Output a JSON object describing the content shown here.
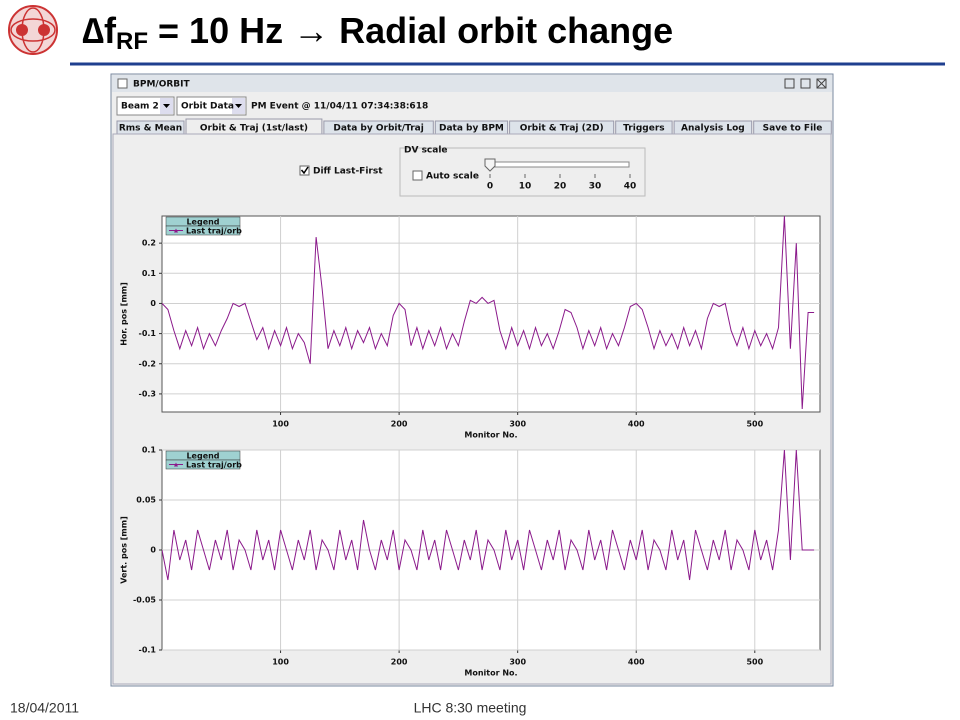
{
  "slide": {
    "title_parts": [
      "∆f",
      "RF",
      " = 10 Hz ",
      "→",
      " Radial orbit change"
    ],
    "footer_date": "18/04/2011",
    "footer_center": "LHC 8:30 meeting"
  },
  "window": {
    "title": "BPM/ORBIT",
    "beam_combo": "Beam 2",
    "data_combo": "Orbit Data",
    "event": "PM Event @ 11/04/11 07:34:38:618",
    "tabs": [
      "Rms & Mean",
      "Orbit & Traj (1st/last)",
      "Data by Orbit/Traj",
      "Data by BPM",
      "Orbit & Traj (2D)",
      "Triggers",
      "Analysis Log",
      "Save to File"
    ],
    "checkbox": "Diff Last-First",
    "group_title": "DV scale",
    "auto_scale": "Auto scale",
    "slider_ticks": [
      "0",
      "10",
      "20",
      "30",
      "40"
    ]
  },
  "chart_data": [
    {
      "type": "line",
      "xlabel": "Monitor No.",
      "ylabel": "Hor. pos [mm]",
      "legend_title": "Legend",
      "xlim": [
        0,
        555
      ],
      "ylim": [
        -0.36,
        0.29
      ],
      "xticks": [
        100,
        200,
        300,
        400,
        500
      ],
      "yticks": [
        0.2,
        0.1,
        0,
        -0.1,
        -0.2,
        -0.3
      ],
      "grid": true,
      "x": [
        0,
        5,
        10,
        15,
        20,
        25,
        30,
        35,
        40,
        45,
        50,
        55,
        60,
        65,
        70,
        75,
        80,
        85,
        90,
        95,
        100,
        105,
        110,
        115,
        120,
        125,
        130,
        135,
        140,
        145,
        150,
        155,
        160,
        165,
        170,
        175,
        180,
        185,
        190,
        195,
        200,
        205,
        210,
        215,
        220,
        225,
        230,
        235,
        240,
        245,
        250,
        255,
        260,
        265,
        270,
        275,
        280,
        285,
        290,
        295,
        300,
        305,
        310,
        315,
        320,
        325,
        330,
        335,
        340,
        345,
        350,
        355,
        360,
        365,
        370,
        375,
        380,
        385,
        390,
        395,
        400,
        405,
        410,
        415,
        420,
        425,
        430,
        435,
        440,
        445,
        450,
        455,
        460,
        465,
        470,
        475,
        480,
        485,
        490,
        495,
        500,
        505,
        510,
        515,
        520,
        525,
        530,
        535,
        540,
        545,
        550
      ],
      "series": [
        {
          "name": "Last traj/orb",
          "color": "#8b1a8b",
          "values": [
            0.0,
            -0.02,
            -0.09,
            -0.15,
            -0.09,
            -0.14,
            -0.08,
            -0.15,
            -0.1,
            -0.14,
            -0.09,
            -0.05,
            0.0,
            -0.01,
            0.0,
            -0.06,
            -0.12,
            -0.08,
            -0.15,
            -0.09,
            -0.14,
            -0.08,
            -0.15,
            -0.1,
            -0.13,
            -0.2,
            0.22,
            0.05,
            -0.15,
            -0.09,
            -0.14,
            -0.08,
            -0.15,
            -0.09,
            -0.13,
            -0.08,
            -0.15,
            -0.1,
            -0.14,
            -0.04,
            0.0,
            -0.02,
            -0.14,
            -0.08,
            -0.15,
            -0.09,
            -0.14,
            -0.08,
            -0.15,
            -0.1,
            -0.14,
            -0.06,
            0.01,
            0.0,
            0.02,
            0.0,
            0.01,
            -0.09,
            -0.15,
            -0.08,
            -0.14,
            -0.09,
            -0.15,
            -0.08,
            -0.14,
            -0.1,
            -0.15,
            -0.09,
            -0.02,
            -0.03,
            -0.08,
            -0.15,
            -0.09,
            -0.14,
            -0.08,
            -0.15,
            -0.1,
            -0.14,
            -0.08,
            -0.01,
            0.0,
            -0.02,
            -0.08,
            -0.15,
            -0.09,
            -0.14,
            -0.1,
            -0.15,
            -0.08,
            -0.14,
            -0.09,
            -0.15,
            -0.05,
            0.0,
            -0.01,
            0.0,
            -0.09,
            -0.14,
            -0.08,
            -0.15,
            -0.09,
            -0.14,
            -0.1,
            -0.15,
            -0.08,
            0.29,
            -0.15,
            0.2,
            -0.35,
            -0.03,
            -0.03
          ]
        }
      ]
    },
    {
      "type": "line",
      "xlabel": "Monitor No.",
      "ylabel": "Vert. pos [mm]",
      "legend_title": "Legend",
      "xlim": [
        0,
        555
      ],
      "ylim": [
        -0.1,
        0.1
      ],
      "xticks": [
        100,
        200,
        300,
        400,
        500
      ],
      "yticks": [
        0.1,
        0.05,
        0,
        -0.05,
        -0.1
      ],
      "grid": true,
      "x": [
        0,
        5,
        10,
        15,
        20,
        25,
        30,
        35,
        40,
        45,
        50,
        55,
        60,
        65,
        70,
        75,
        80,
        85,
        90,
        95,
        100,
        105,
        110,
        115,
        120,
        125,
        130,
        135,
        140,
        145,
        150,
        155,
        160,
        165,
        170,
        175,
        180,
        185,
        190,
        195,
        200,
        205,
        210,
        215,
        220,
        225,
        230,
        235,
        240,
        245,
        250,
        255,
        260,
        265,
        270,
        275,
        280,
        285,
        290,
        295,
        300,
        305,
        310,
        315,
        320,
        325,
        330,
        335,
        340,
        345,
        350,
        355,
        360,
        365,
        370,
        375,
        380,
        385,
        390,
        395,
        400,
        405,
        410,
        415,
        420,
        425,
        430,
        435,
        440,
        445,
        450,
        455,
        460,
        465,
        470,
        475,
        480,
        485,
        490,
        495,
        500,
        505,
        510,
        515,
        520,
        525,
        530,
        535,
        540,
        545,
        550
      ],
      "series": [
        {
          "name": "Last traj/orb",
          "color": "#8b1a8b",
          "values": [
            0.0,
            -0.03,
            0.02,
            -0.01,
            0.01,
            -0.02,
            0.02,
            0.0,
            -0.02,
            0.01,
            -0.01,
            0.02,
            -0.02,
            0.01,
            0.0,
            -0.02,
            0.02,
            -0.01,
            0.01,
            -0.02,
            0.02,
            0.0,
            -0.02,
            0.01,
            -0.01,
            0.02,
            -0.02,
            0.01,
            0.0,
            -0.02,
            0.02,
            -0.01,
            0.01,
            -0.02,
            0.03,
            0.0,
            -0.02,
            0.01,
            -0.01,
            0.02,
            -0.02,
            0.01,
            0.0,
            -0.02,
            0.02,
            -0.01,
            0.01,
            -0.02,
            0.02,
            0.0,
            -0.02,
            0.01,
            -0.01,
            0.02,
            -0.02,
            0.01,
            0.0,
            -0.02,
            0.02,
            -0.01,
            0.01,
            -0.02,
            0.02,
            0.0,
            -0.02,
            0.01,
            -0.01,
            0.02,
            -0.02,
            0.01,
            0.0,
            -0.02,
            0.02,
            -0.01,
            0.01,
            -0.02,
            0.02,
            0.0,
            -0.02,
            0.01,
            -0.01,
            0.02,
            -0.02,
            0.01,
            0.0,
            -0.02,
            0.02,
            -0.01,
            0.01,
            -0.03,
            0.02,
            0.0,
            -0.02,
            0.01,
            -0.01,
            0.02,
            -0.02,
            0.01,
            0.0,
            -0.02,
            0.02,
            -0.01,
            0.01,
            -0.02,
            0.02,
            0.1,
            -0.01,
            0.1,
            0.0,
            0.0,
            0.0
          ]
        }
      ]
    }
  ]
}
